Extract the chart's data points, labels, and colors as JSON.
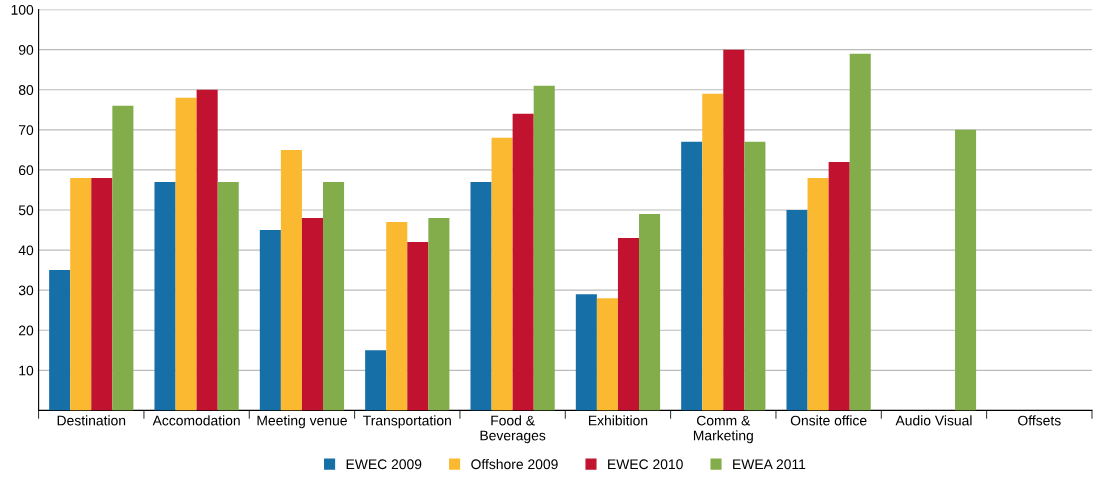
{
  "chart_data": {
    "type": "bar",
    "categories": [
      "Destination",
      "Accomodation",
      "Meeting venue",
      "Transportation",
      "Food &\nBeverages",
      "Exhibition",
      "Comm &\nMarketing",
      "Onsite office",
      "Audio Visual",
      "Offsets"
    ],
    "series": [
      {
        "name": "EWEC 2009",
        "color": "#1670a7",
        "values": [
          35,
          57,
          45,
          15,
          57,
          29,
          67,
          50,
          null,
          null
        ]
      },
      {
        "name": "Offshore 2009",
        "color": "#fbb931",
        "values": [
          58,
          78,
          65,
          47,
          68,
          28,
          79,
          58,
          null,
          null
        ]
      },
      {
        "name": "EWEC 2010",
        "color": "#c1132f",
        "values": [
          58,
          80,
          48,
          42,
          74,
          43,
          90,
          62,
          null,
          null
        ]
      },
      {
        "name": "EWEA 2011",
        "color": "#83ad4b",
        "values": [
          76,
          57,
          57,
          48,
          81,
          49,
          67,
          89,
          70,
          null
        ]
      }
    ],
    "ylim": [
      0,
      100
    ],
    "yticks": [
      10,
      20,
      30,
      40,
      50,
      60,
      70,
      80,
      90,
      100
    ],
    "grid": "y",
    "legend": "bottom"
  }
}
